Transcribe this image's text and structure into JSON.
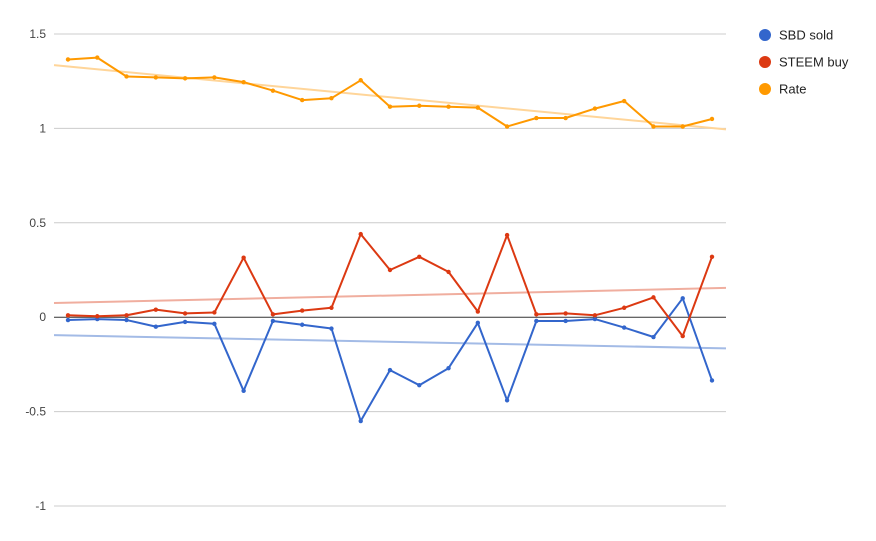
{
  "chart_data": {
    "type": "line",
    "title": "",
    "xlabel": "",
    "ylabel": "",
    "ylim": [
      -1,
      1.5
    ],
    "yticks": [
      {
        "value": 1.5,
        "label": "1.5"
      },
      {
        "value": 1,
        "label": "1"
      },
      {
        "value": 0.5,
        "label": "0.5"
      },
      {
        "value": 0,
        "label": "0"
      },
      {
        "value": -0.5,
        "label": "-0.5"
      },
      {
        "value": -1,
        "label": "-1"
      }
    ],
    "grid": true,
    "legend_position": "right",
    "x": [
      1,
      2,
      3,
      4,
      5,
      6,
      7,
      8,
      9,
      10,
      11,
      12,
      13,
      14,
      15,
      16,
      17,
      18,
      19,
      20,
      21,
      22,
      23
    ],
    "series": [
      {
        "name": "SBD sold",
        "color": "#3366cc",
        "trend_color": "#a3bbe6",
        "values": [
          -0.015,
          -0.01,
          -0.015,
          -0.05,
          -0.025,
          -0.035,
          -0.39,
          -0.02,
          -0.04,
          -0.06,
          -0.55,
          -0.28,
          -0.36,
          -0.27,
          -0.03,
          -0.44,
          -0.02,
          -0.02,
          -0.01,
          -0.055,
          -0.105,
          0.1,
          -0.335
        ],
        "trendline": [
          -0.095,
          -0.165
        ]
      },
      {
        "name": "STEEM buy",
        "color": "#dc3912",
        "trend_color": "#f0ae9f",
        "values": [
          0.01,
          0.005,
          0.01,
          0.04,
          0.02,
          0.025,
          0.315,
          0.015,
          0.035,
          0.05,
          0.44,
          0.25,
          0.32,
          0.24,
          0.03,
          0.435,
          0.015,
          0.02,
          0.01,
          0.05,
          0.105,
          -0.1,
          0.32
        ],
        "trendline": [
          0.075,
          0.155
        ]
      },
      {
        "name": "Rate",
        "color": "#ff9900",
        "trend_color": "#ffd599",
        "values": [
          1.365,
          1.375,
          1.275,
          1.27,
          1.265,
          1.27,
          1.245,
          1.2,
          1.15,
          1.16,
          1.255,
          1.115,
          1.12,
          1.115,
          1.11,
          1.01,
          1.055,
          1.055,
          1.105,
          1.145,
          1.01,
          1.01,
          1.05
        ],
        "trendline": [
          1.335,
          0.995
        ]
      }
    ]
  }
}
